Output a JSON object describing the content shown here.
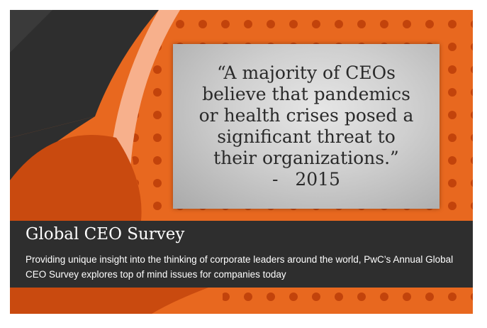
{
  "quote": {
    "text": "“A majority of CEOs\nbelieve that pandemics\nor health crises posed a\nsignificant threat to\ntheir organizations.”",
    "attribution": "-   2015"
  },
  "caption": {
    "title": "Global CEO Survey",
    "description": "Providing unique insight into the thinking of corporate leaders around the world, PwC’s Annual Global CEO Survey explores top of mind issues for companies today"
  },
  "colors": {
    "orange": "#e8681f",
    "dark_orange": "#c94a0f",
    "peach": "#f7b08c",
    "charcoal": "#2e2e2e",
    "dot": "#c2430b"
  }
}
